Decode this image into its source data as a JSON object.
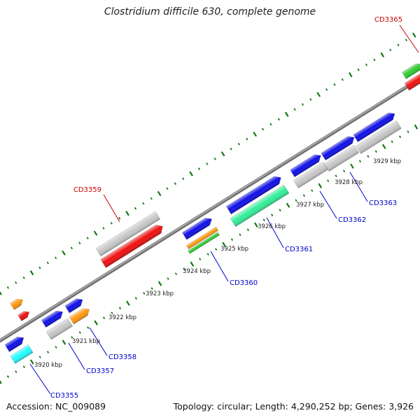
{
  "title": "Clostridium difficile 630, complete genome",
  "footer": {
    "accession": "Accession: NC_009089",
    "summary": "Topology: circular; Length: 4,290,252 bp; Genes: 3,926"
  },
  "colors": {
    "backbone": "#8a8a8a",
    "tick": "#127a12",
    "blue": "#1010e6",
    "grey": "#c8c8c8",
    "red": "#ee1111",
    "orange": "#ff9a10",
    "green": "#33cc33",
    "cyan": "#22ffff",
    "mint": "#33ee99",
    "label_blue": "#0000cc",
    "label_red": "#cc0000"
  },
  "kbp_labels": [
    "3920 kbp",
    "3921 kbp",
    "3922 kbp",
    "3923 kbp",
    "3924 kbp",
    "3925 kbp",
    "3926 kbp",
    "3927 kbp",
    "3928 kbp",
    "3929 kbp"
  ],
  "gene_labels": [
    {
      "text": "CD3355",
      "color": "blue"
    },
    {
      "text": "CD3357",
      "color": "blue"
    },
    {
      "text": "CD3358",
      "color": "blue"
    },
    {
      "text": "CD3359",
      "color": "red"
    },
    {
      "text": "CD3360",
      "color": "blue"
    },
    {
      "text": "CD3361",
      "color": "blue"
    },
    {
      "text": "CD3362",
      "color": "blue"
    },
    {
      "text": "CD3363",
      "color": "blue"
    },
    {
      "text": "CD3365",
      "color": "red"
    }
  ],
  "features": [
    {
      "color": "orange"
    },
    {
      "color": "red"
    },
    {
      "color": "blue"
    },
    {
      "color": "cyan"
    },
    {
      "color": "blue"
    },
    {
      "color": "grey"
    },
    {
      "color": "blue"
    },
    {
      "color": "orange"
    },
    {
      "color": "grey"
    },
    {
      "color": "red"
    },
    {
      "color": "blue"
    },
    {
      "color": "orange"
    },
    {
      "color": "green"
    },
    {
      "color": "blue"
    },
    {
      "color": "mint"
    },
    {
      "color": "blue"
    },
    {
      "color": "grey"
    },
    {
      "color": "blue"
    },
    {
      "color": "grey"
    },
    {
      "color": "blue"
    },
    {
      "color": "grey"
    },
    {
      "color": "green"
    },
    {
      "color": "red"
    }
  ]
}
